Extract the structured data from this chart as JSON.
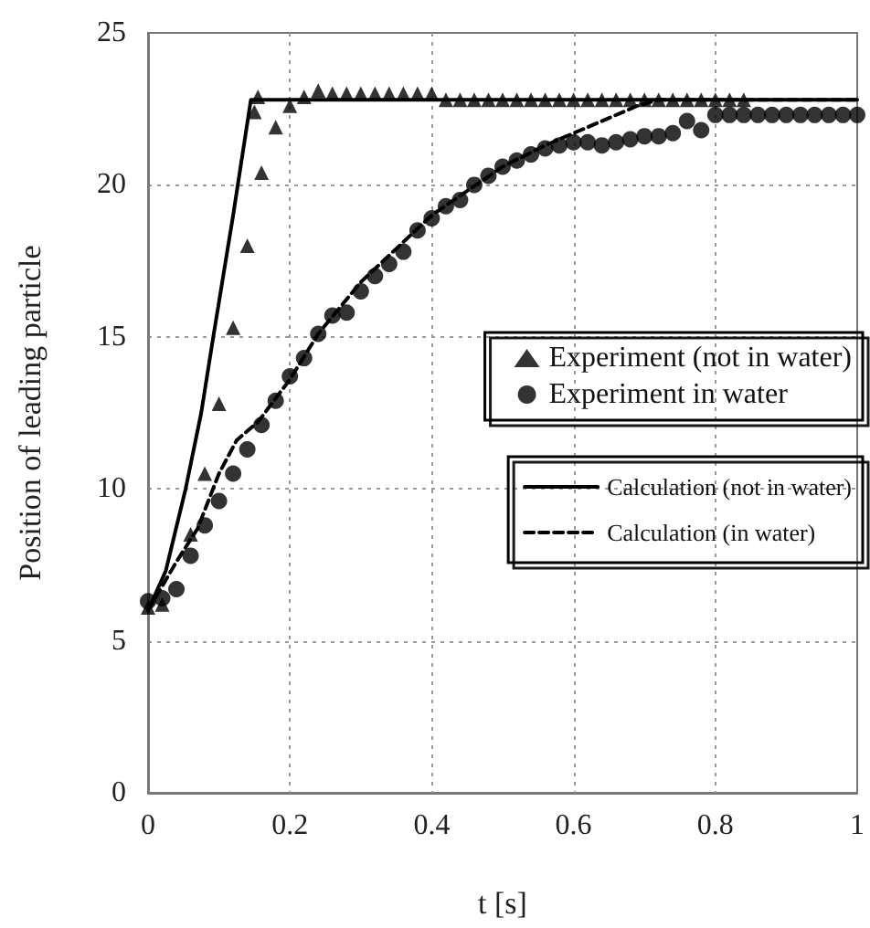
{
  "chart_data": {
    "type": "scatter",
    "xlabel": "t [s]",
    "ylabel": "Position of leading particle",
    "xlim": [
      0,
      1
    ],
    "xticks": [
      0,
      0.2,
      0.4,
      0.6,
      0.8,
      1
    ],
    "ylim": [
      0,
      25
    ],
    "yticks": [
      0,
      5,
      10,
      15,
      20,
      25
    ],
    "grid": true,
    "legend": "right",
    "series": [
      {
        "name": "Experiment (not in water)",
        "marker": "triangle",
        "color": "#000000",
        "x": [
          0,
          0.02,
          0.06,
          0.08,
          0.1,
          0.12,
          0.14,
          0.15,
          0.155,
          0.16,
          0.18,
          0.2,
          0.22,
          0.24,
          0.26,
          0.28,
          0.3,
          0.32,
          0.34,
          0.36,
          0.38,
          0.4,
          0.42,
          0.44,
          0.46,
          0.48,
          0.5,
          0.52,
          0.54,
          0.56,
          0.58,
          0.6,
          0.62,
          0.64,
          0.66,
          0.68,
          0.7,
          0.72,
          0.74,
          0.76,
          0.78,
          0.8,
          0.82,
          0.84
        ],
        "values": [
          6.1,
          6.2,
          8.5,
          10.5,
          12.8,
          15.3,
          18.0,
          22.4,
          22.9,
          20.4,
          21.9,
          22.6,
          22.9,
          23.1,
          23.0,
          23.0,
          23.0,
          23.0,
          23.0,
          23.0,
          23.0,
          23.0,
          22.8,
          22.8,
          22.8,
          22.8,
          22.8,
          22.8,
          22.8,
          22.8,
          22.8,
          22.8,
          22.8,
          22.8,
          22.8,
          22.8,
          22.8,
          22.8,
          22.8,
          22.8,
          22.8,
          22.8,
          22.8,
          22.8
        ]
      },
      {
        "name": "Experiment in water",
        "marker": "circle",
        "color": "#000000",
        "x": [
          0,
          0.02,
          0.04,
          0.06,
          0.08,
          0.1,
          0.12,
          0.14,
          0.16,
          0.18,
          0.2,
          0.22,
          0.24,
          0.26,
          0.28,
          0.3,
          0.32,
          0.34,
          0.36,
          0.38,
          0.4,
          0.42,
          0.44,
          0.46,
          0.48,
          0.5,
          0.52,
          0.54,
          0.56,
          0.58,
          0.6,
          0.62,
          0.64,
          0.66,
          0.68,
          0.7,
          0.72,
          0.74,
          0.76,
          0.78,
          0.8,
          0.82,
          0.84,
          0.86,
          0.88,
          0.9,
          0.92,
          0.94,
          0.96,
          0.98,
          1.0
        ],
        "values": [
          6.3,
          6.4,
          6.7,
          7.8,
          8.8,
          9.6,
          10.5,
          11.3,
          12.1,
          12.9,
          13.7,
          14.3,
          15.1,
          15.7,
          15.8,
          16.5,
          17.0,
          17.4,
          17.8,
          18.5,
          18.9,
          19.3,
          19.5,
          20.0,
          20.3,
          20.6,
          20.8,
          21.0,
          21.2,
          21.3,
          21.4,
          21.4,
          21.3,
          21.4,
          21.5,
          21.6,
          21.6,
          21.7,
          22.1,
          21.8,
          22.3,
          22.3,
          22.3,
          22.3,
          22.3,
          22.3,
          22.3,
          22.3,
          22.3,
          22.3,
          22.3
        ]
      },
      {
        "name": "Calculation (not in water)",
        "type": "line",
        "marker": "none",
        "line_style": "solid",
        "color": "#000000",
        "x": [
          0,
          0.025,
          0.053,
          0.075,
          0.092,
          0.12,
          0.145,
          1
        ],
        "values": [
          6.0,
          7.3,
          10.0,
          12.5,
          15.0,
          19.0,
          22.8,
          22.8
        ]
      },
      {
        "name": "Calculation (in water)",
        "type": "line",
        "marker": "none",
        "line_style": "dashed",
        "color": "#000000",
        "x": [
          0,
          0.04,
          0.07,
          0.1,
          0.125,
          0.155,
          0.2,
          0.24,
          0.3,
          0.4,
          0.5,
          0.56,
          0.61,
          0.69,
          0.72,
          1
        ],
        "values": [
          6.0,
          7.6,
          8.7,
          10.5,
          11.6,
          12.2,
          13.6,
          15.1,
          16.8,
          19.0,
          20.6,
          21.3,
          21.8,
          22.6,
          22.8,
          22.8
        ]
      }
    ]
  }
}
